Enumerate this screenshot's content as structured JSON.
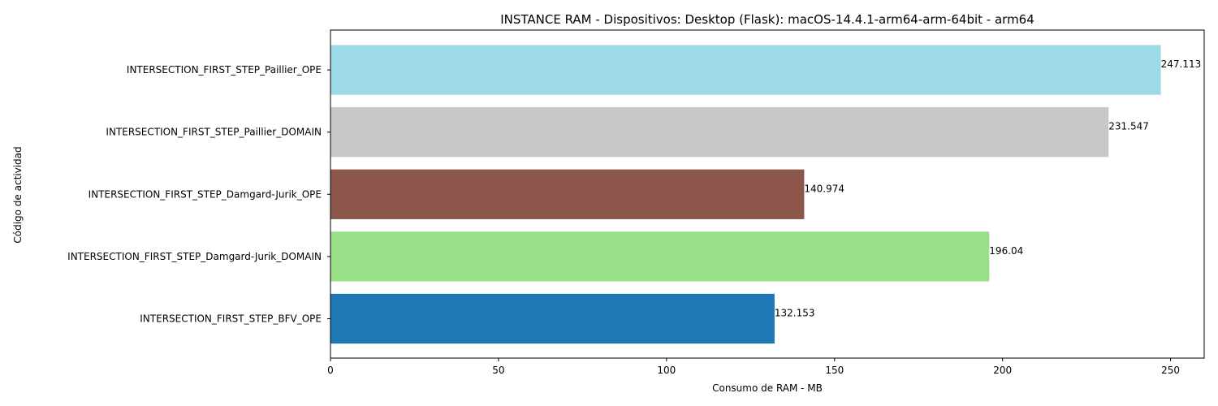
{
  "chart_data": {
    "type": "bar",
    "orientation": "horizontal",
    "title": "INSTANCE RAM - Dispositivos: Desktop (Flask): macOS-14.4.1-arm64-arm-64bit - arm64",
    "xlabel": "Consumo de RAM - MB",
    "ylabel": "Código de actividad",
    "xlim": [
      0,
      260
    ],
    "xticks": [
      0,
      50,
      100,
      150,
      200,
      250
    ],
    "categories": [
      "INTERSECTION_FIRST_STEP_BFV_OPE",
      "INTERSECTION_FIRST_STEP_Damgard-Jurik_DOMAIN",
      "INTERSECTION_FIRST_STEP_Damgard-Jurik_OPE",
      "INTERSECTION_FIRST_STEP_Paillier_DOMAIN",
      "INTERSECTION_FIRST_STEP_Paillier_OPE"
    ],
    "values": [
      132.153,
      196.04,
      140.974,
      231.547,
      247.113
    ],
    "data_labels": [
      "132.153",
      "196.04",
      "140.974",
      "231.547",
      "247.113"
    ],
    "colors": [
      "#1f77b4",
      "#98df8a",
      "#8c564b",
      "#c7c7c7",
      "#9edae5"
    ],
    "grid": false,
    "legend": "none"
  }
}
